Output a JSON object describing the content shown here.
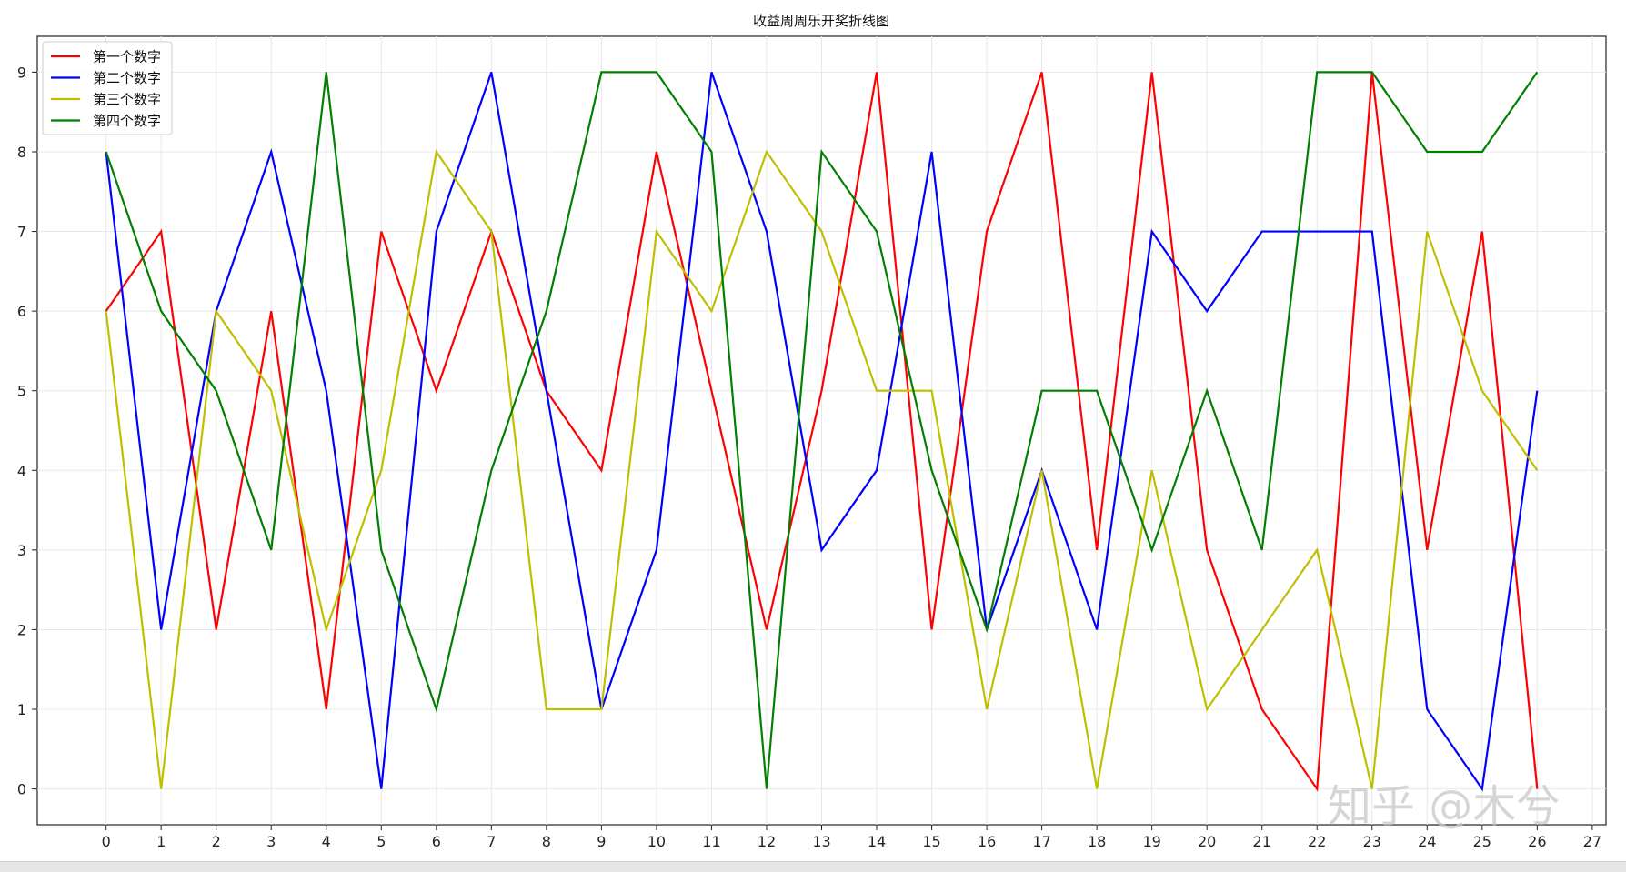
{
  "chart_data": {
    "type": "line",
    "title": "收益周周乐开奖折线图",
    "xlabel": "",
    "ylabel": "",
    "x": [
      0,
      1,
      2,
      3,
      4,
      5,
      6,
      7,
      8,
      9,
      10,
      11,
      12,
      13,
      14,
      15,
      16,
      17,
      18,
      19,
      20,
      21,
      22,
      23,
      24,
      25,
      26
    ],
    "xticks": [
      0,
      1,
      2,
      3,
      4,
      5,
      6,
      7,
      8,
      9,
      10,
      11,
      12,
      13,
      14,
      15,
      16,
      17,
      18,
      19,
      20,
      21,
      22,
      23,
      24,
      25,
      26,
      27
    ],
    "yticks": [
      0,
      1,
      2,
      3,
      4,
      5,
      6,
      7,
      8,
      9
    ],
    "xlim": [
      -1.25,
      27.25
    ],
    "ylim": [
      -0.45,
      9.45
    ],
    "grid": true,
    "legend_position": "top-left",
    "series": [
      {
        "name": "第一个数字",
        "color": "#ff0000",
        "values": [
          6,
          7,
          2,
          6,
          1,
          7,
          5,
          7,
          5,
          4,
          8,
          5,
          2,
          5,
          9,
          2,
          7,
          9,
          3,
          9,
          3,
          1,
          0,
          9,
          3,
          7,
          0
        ]
      },
      {
        "name": "第二个数字",
        "color": "#0000ff",
        "values": [
          8,
          2,
          6,
          8,
          5,
          0,
          7,
          9,
          5,
          1,
          3,
          9,
          7,
          3,
          4,
          8,
          2,
          4,
          2,
          7,
          6,
          7,
          7,
          7,
          1,
          0,
          5
        ]
      },
      {
        "name": "第三个数字",
        "color": "#bfbf00",
        "values": [
          6,
          0,
          6,
          5,
          2,
          4,
          8,
          7,
          1,
          1,
          7,
          6,
          8,
          7,
          5,
          5,
          1,
          4,
          0,
          4,
          1,
          2,
          3,
          0,
          7,
          5,
          4
        ]
      },
      {
        "name": "第四个数字",
        "color": "#008000",
        "values": [
          8,
          6,
          5,
          3,
          9,
          3,
          1,
          4,
          6,
          9,
          9,
          8,
          0,
          8,
          7,
          4,
          2,
          5,
          5,
          3,
          5,
          3,
          9,
          9,
          8,
          8,
          9
        ]
      }
    ]
  },
  "watermark": "知乎 @木兮"
}
